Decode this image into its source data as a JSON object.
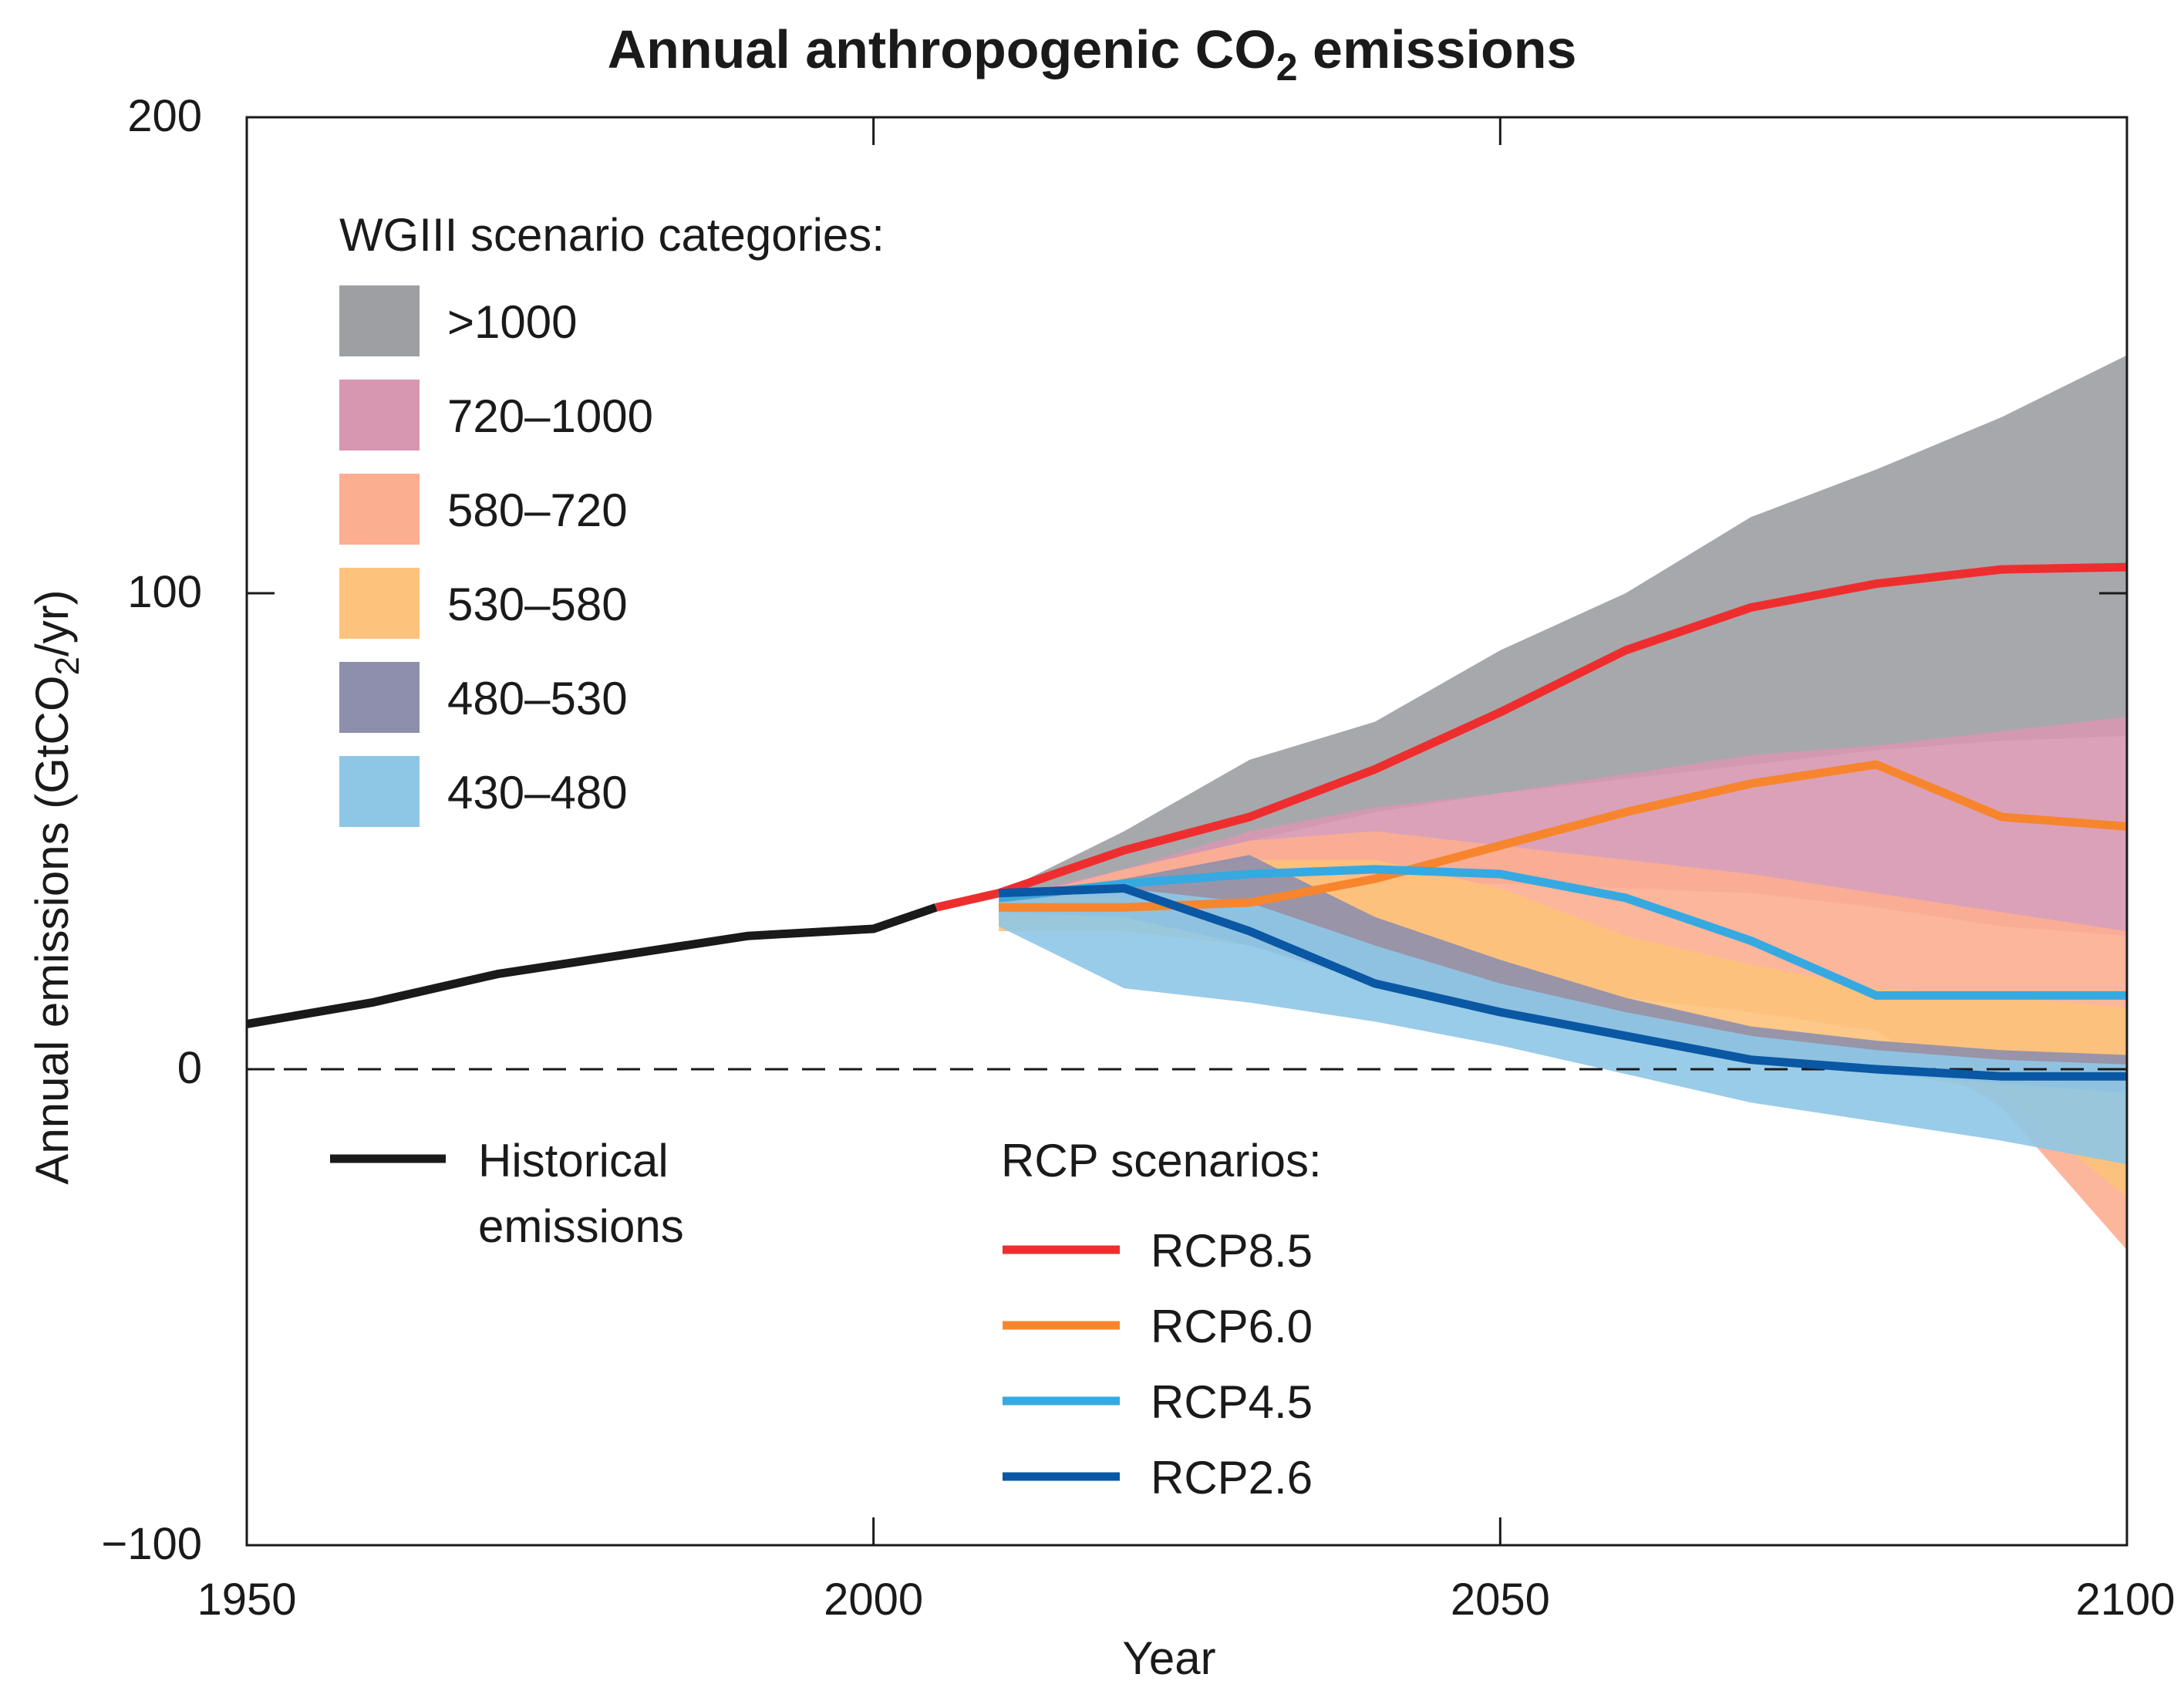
{
  "chart_data": {
    "type": "area",
    "title_main": "Annual anthropogenic CO",
    "title_sub": "2",
    "title_rest": " emissions",
    "xlabel": "Year",
    "ylabel_main": "Annual emissions (GtCO",
    "ylabel_sub": "2",
    "ylabel_rest": "/yr)",
    "xlim": [
      1950,
      2100
    ],
    "ylim": [
      -100,
      200
    ],
    "xticks": [
      "1950",
      "2000",
      "2050",
      "2100"
    ],
    "yticks": [
      "200",
      "100",
      "0",
      "−100"
    ],
    "ytick_values": [
      200,
      100,
      0,
      -100
    ],
    "xtick_values": [
      1950,
      2000,
      2050,
      2100
    ],
    "zero_line": "dashed",
    "bands_legend_title": "WGIII scenario categories:",
    "bands": [
      {
        "name": ">1000",
        "color": "#9d9fa2",
        "x": [
          2010,
          2020,
          2030,
          2040,
          2050,
          2060,
          2070,
          2080,
          2090,
          2100
        ],
        "upper": [
          37,
          50,
          65,
          73,
          88,
          100,
          116,
          126,
          137,
          150
        ],
        "lower": [
          35,
          42,
          48,
          54,
          58,
          61,
          64,
          67,
          69,
          70
        ]
      },
      {
        "name": "720–1000",
        "color": "#d797b0",
        "x": [
          2010,
          2020,
          2030,
          2040,
          2050,
          2060,
          2070,
          2080,
          2090,
          2100
        ],
        "upper": [
          36,
          42,
          50,
          55,
          58,
          62,
          66,
          68,
          71,
          74
        ],
        "lower": [
          33,
          36,
          38,
          39,
          39,
          38,
          37,
          34,
          30,
          28
        ]
      },
      {
        "name": "580–720",
        "color": "#fcae91",
        "x": [
          2010,
          2020,
          2030,
          2040,
          2050,
          2060,
          2070,
          2080,
          2090,
          2100
        ],
        "upper": [
          35,
          42,
          48,
          50,
          47,
          44,
          41,
          37,
          33,
          29
        ],
        "lower": [
          31,
          33,
          31,
          25,
          20,
          15,
          12,
          8,
          -8,
          -38
        ]
      },
      {
        "name": "530–580",
        "color": "#fdc27b",
        "x": [
          2010,
          2020,
          2030,
          2040,
          2050,
          2060,
          2070,
          2080,
          2090,
          2100
        ],
        "upper": [
          35,
          40,
          44,
          44,
          38,
          28,
          22,
          17,
          15,
          13
        ],
        "lower": [
          29,
          29,
          26,
          20,
          14,
          8,
          3,
          0,
          -5,
          -27
        ]
      },
      {
        "name": "480–530",
        "color": "#8e8fad",
        "x": [
          2010,
          2020,
          2030,
          2040,
          2050,
          2060,
          2070,
          2080,
          2090,
          2100
        ],
        "upper": [
          35,
          40,
          45,
          32,
          23,
          15,
          9,
          6,
          4,
          3
        ],
        "lower": [
          33,
          32,
          26,
          18,
          12,
          7,
          2,
          -1,
          -3,
          -5
        ]
      },
      {
        "name": "430–480",
        "color": "#8ec7e6",
        "x": [
          2010,
          2020,
          2030,
          2040,
          2050,
          2060,
          2070,
          2080,
          2090,
          2100
        ],
        "upper": [
          35,
          38,
          35,
          26,
          18,
          12,
          7,
          4,
          2,
          1
        ],
        "lower": [
          30,
          17,
          14,
          10,
          5,
          -1,
          -7,
          -11,
          -15,
          -20
        ]
      }
    ],
    "rcp_legend_title": "RCP scenarios:",
    "series": [
      {
        "name": "Historical emissions",
        "legend_line1": "Historical",
        "legend_line2": "emissions",
        "color": "#1a1a1a",
        "x": [
          1950,
          1960,
          1970,
          1980,
          1990,
          2000,
          2005
        ],
        "y": [
          9.5,
          14,
          20,
          24,
          28,
          29.5,
          34
        ]
      },
      {
        "name": "RCP8.5",
        "color": "#ee2e2e",
        "x": [
          2005,
          2010,
          2020,
          2030,
          2040,
          2050,
          2060,
          2070,
          2080,
          2090,
          2100
        ],
        "y": [
          34,
          37,
          46,
          53,
          63,
          75,
          88,
          97,
          102,
          105,
          105.5
        ]
      },
      {
        "name": "RCP6.0",
        "color": "#f7852e",
        "x": [
          2010,
          2020,
          2030,
          2040,
          2050,
          2060,
          2070,
          2080,
          2090,
          2100
        ],
        "y": [
          34,
          34,
          35,
          40,
          47,
          54,
          60,
          64,
          53,
          51
        ]
      },
      {
        "name": "RCP4.5",
        "color": "#36a9e1",
        "x": [
          2010,
          2020,
          2030,
          2040,
          2050,
          2060,
          2070,
          2080,
          2090,
          2100
        ],
        "y": [
          36,
          39,
          41,
          42,
          41,
          36,
          27,
          15.5,
          15.5,
          15.5
        ]
      },
      {
        "name": "RCP2.6",
        "color": "#0a58a4",
        "x": [
          2010,
          2020,
          2030,
          2040,
          2050,
          2060,
          2070,
          2080,
          2090,
          2100
        ],
        "y": [
          37,
          38,
          29,
          18,
          12,
          7,
          2,
          0,
          -1.5,
          -1.5
        ]
      }
    ]
  }
}
